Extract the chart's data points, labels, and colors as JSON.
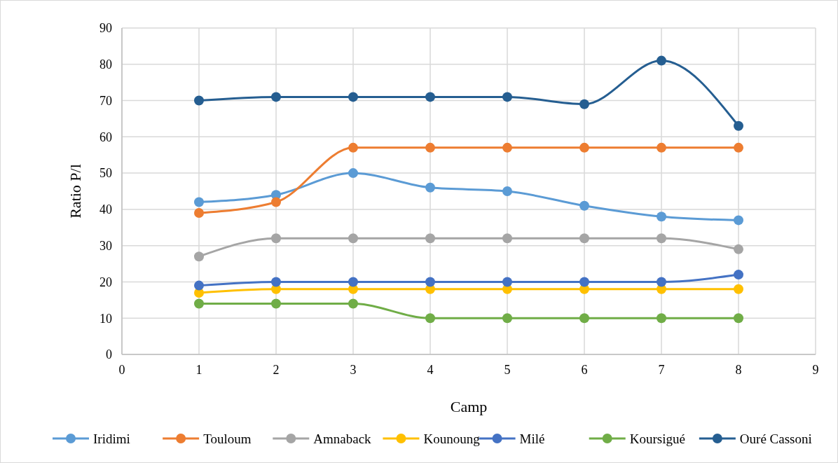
{
  "chart_data": {
    "type": "line",
    "xlabel": "Camp",
    "ylabel": "Ratio P/l",
    "x": [
      1,
      2,
      3,
      4,
      5,
      6,
      7,
      8
    ],
    "xlim": [
      0,
      9
    ],
    "xticks": [
      0,
      1,
      2,
      3,
      4,
      5,
      6,
      7,
      8,
      9
    ],
    "ylim": [
      0,
      90
    ],
    "yticks": [
      0,
      10,
      20,
      30,
      40,
      50,
      60,
      70,
      80,
      90
    ],
    "grid": true,
    "legend": "bottom",
    "marker": "circle",
    "line_style": "solid",
    "series": [
      {
        "name": "Iridimi",
        "color": "#5b9bd5",
        "values": [
          42,
          44,
          50,
          46,
          45,
          41,
          38,
          37
        ]
      },
      {
        "name": "Touloum",
        "color": "#ed7d31",
        "values": [
          39,
          42,
          57,
          57,
          57,
          57,
          57,
          57
        ]
      },
      {
        "name": "Amnaback",
        "color": "#a5a5a5",
        "values": [
          27,
          32,
          32,
          32,
          32,
          32,
          32,
          29
        ]
      },
      {
        "name": "Kounoung",
        "color": "#ffc000",
        "values": [
          17,
          18,
          18,
          18,
          18,
          18,
          18,
          18
        ]
      },
      {
        "name": "Milé",
        "color": "#4472c4",
        "values": [
          19,
          20,
          20,
          20,
          20,
          20,
          20,
          22
        ]
      },
      {
        "name": "Koursigué",
        "color": "#70ad47",
        "values": [
          14,
          14,
          14,
          10,
          10,
          10,
          10,
          10
        ]
      },
      {
        "name": "Ouré Cassoni",
        "color": "#255e91",
        "values": [
          70,
          71,
          71,
          71,
          71,
          69,
          81,
          63
        ]
      }
    ]
  }
}
